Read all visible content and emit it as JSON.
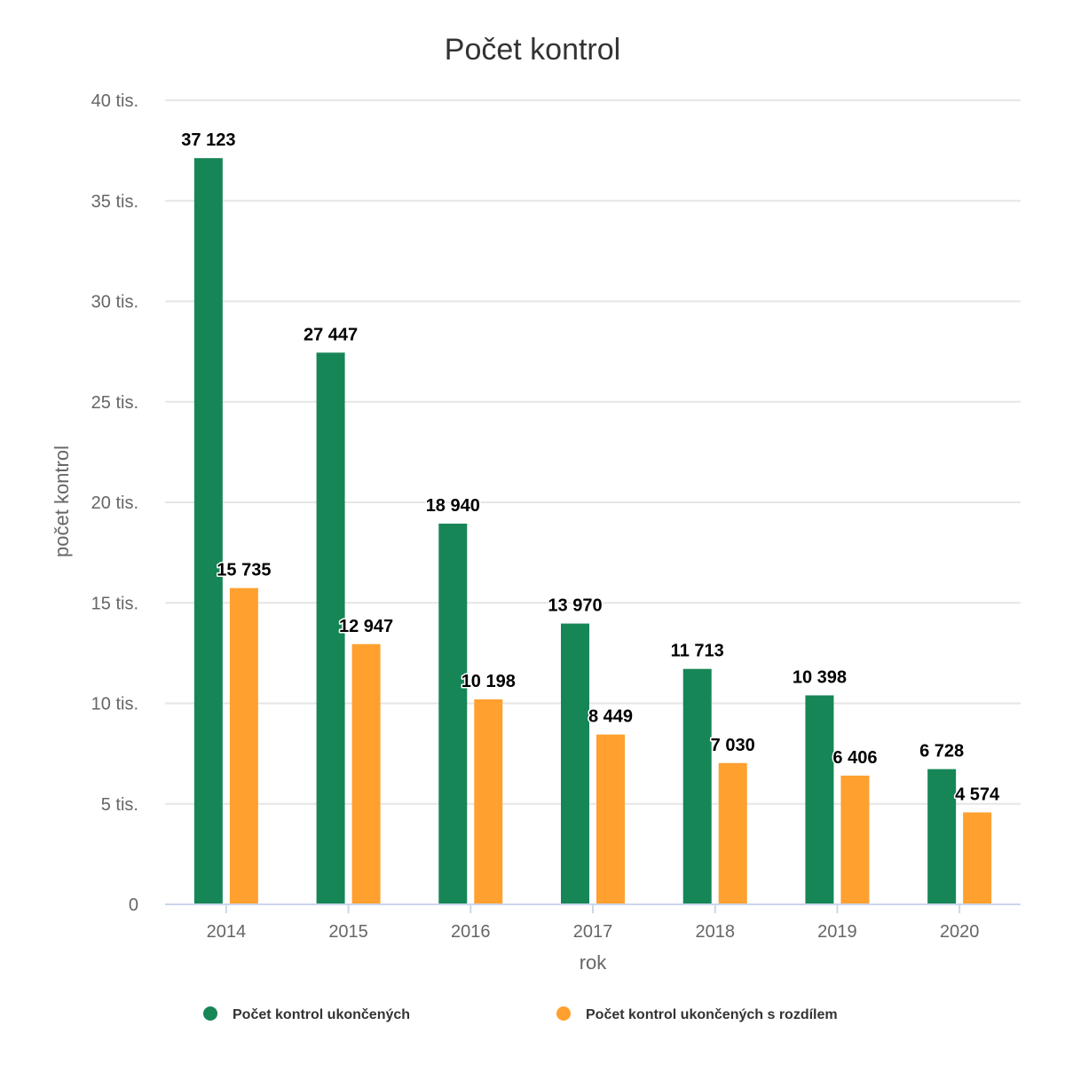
{
  "chart_data": {
    "type": "bar",
    "title": "Počet kontrol",
    "xlabel": "rok",
    "ylabel": "počet kontrol",
    "categories": [
      "2014",
      "2015",
      "2016",
      "2017",
      "2018",
      "2019",
      "2020"
    ],
    "ylim": [
      0,
      40000
    ],
    "yticks": [
      {
        "value": 0,
        "label": "0"
      },
      {
        "value": 5000,
        "label": "5 tis."
      },
      {
        "value": 10000,
        "label": "10 tis."
      },
      {
        "value": 15000,
        "label": "15 tis."
      },
      {
        "value": 20000,
        "label": "20 tis."
      },
      {
        "value": 25000,
        "label": "25 tis."
      },
      {
        "value": 30000,
        "label": "30 tis."
      },
      {
        "value": 35000,
        "label": "35 tis."
      },
      {
        "value": 40000,
        "label": "40 tis."
      }
    ],
    "grid": true,
    "legend_position": "bottom",
    "series": [
      {
        "name": "Počet kontrol ukončených",
        "color": "#178657",
        "values": [
          37123,
          27447,
          18940,
          13970,
          11713,
          10398,
          6728
        ],
        "labels": [
          "37 123",
          "27 447",
          "18 940",
          "13 970",
          "11 713",
          "10 398",
          "6 728"
        ]
      },
      {
        "name": "Počet kontrol ukončených s rozdílem",
        "color": "#FFA02F",
        "values": [
          15735,
          12947,
          10198,
          8449,
          7030,
          6406,
          4574
        ],
        "labels": [
          "15 735",
          "12 947",
          "10 198",
          "8 449",
          "7 030",
          "6 406",
          "4 574"
        ]
      }
    ]
  }
}
